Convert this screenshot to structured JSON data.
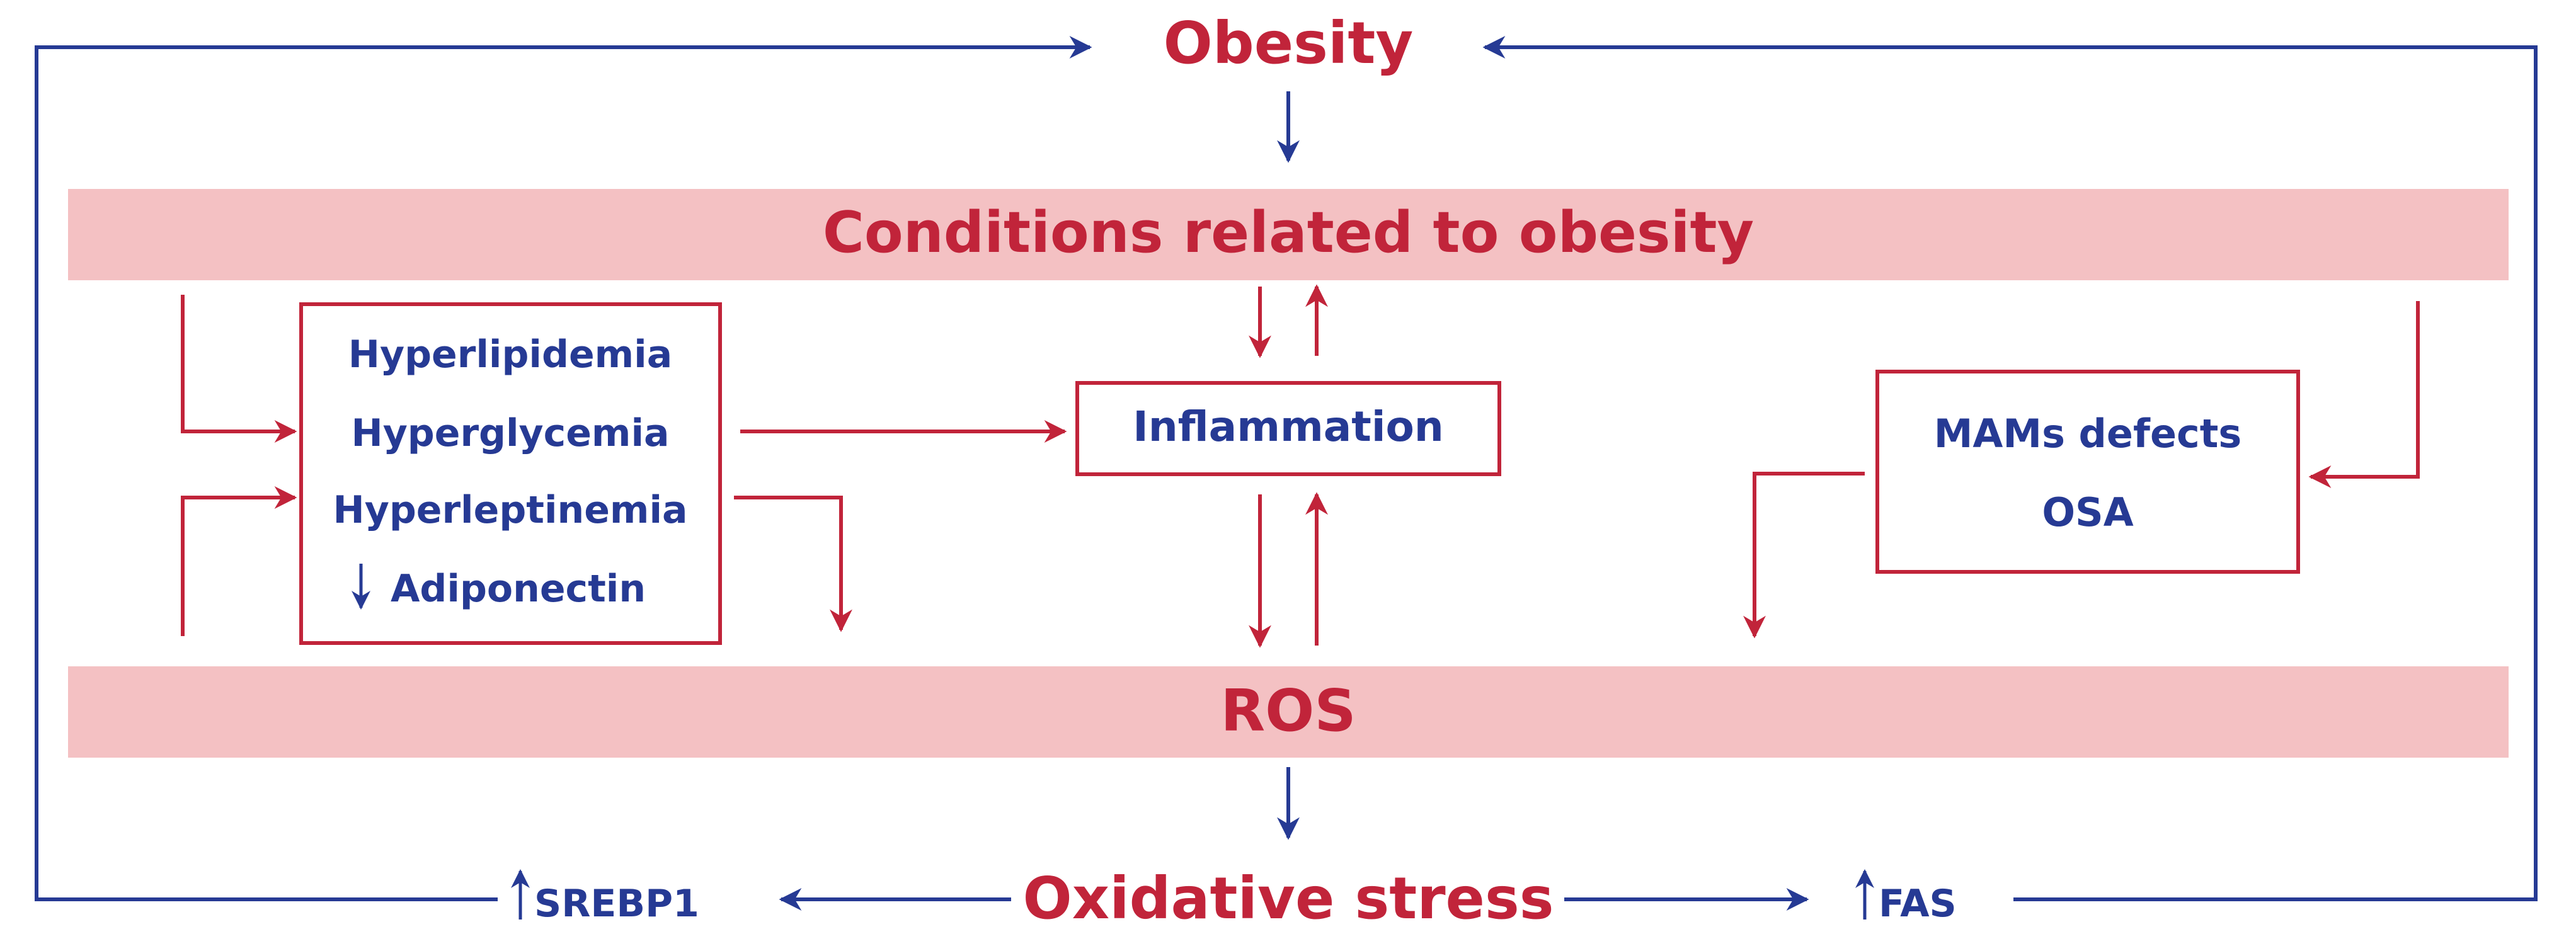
{
  "colors": {
    "red": "#c1243a",
    "blue": "#263a94",
    "band": "#f4c1c3"
  },
  "top": {
    "title": "Obesity"
  },
  "conditions": {
    "label": "Conditions related to obesity"
  },
  "metabolic_box": {
    "items": [
      "Hyperlipidemia",
      "Hyperglycemia",
      "Hyperleptinemia",
      "Adiponectin"
    ],
    "adiponectin_arrow": "down-arrow-icon"
  },
  "inflammation": {
    "label": "Inflammation"
  },
  "mams_box": {
    "items": [
      "MAMs defects",
      "OSA"
    ]
  },
  "ros": {
    "label": "ROS"
  },
  "bottom": {
    "title": "Oxidative stress",
    "left_marker": "SREBP1",
    "right_marker": "FAS",
    "marker_arrow": "up-arrow-icon"
  }
}
